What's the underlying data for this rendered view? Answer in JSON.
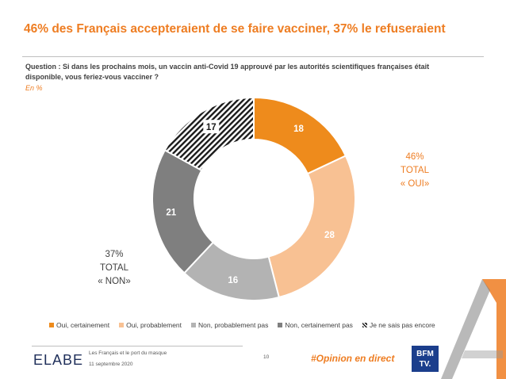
{
  "title": "46% des Français accepteraient de se faire vacciner, 37% le refuseraient",
  "question_line1": "Question : Si dans les prochains mois, un vaccin anti-Covid 19 approuvé par les autorités scientifiques françaises était",
  "question_line2": "disponible, vous feriez-vous vacciner ?",
  "unit": "En  %",
  "total_oui": {
    "pct": "46%",
    "word": "TOTAL",
    "label": "« OUI»"
  },
  "total_non": {
    "pct": "37%",
    "word": "TOTAL",
    "label": "« NON»"
  },
  "chart_data": {
    "type": "pie",
    "style": "donut",
    "categories": [
      "Oui, certainement",
      "Oui, probablement",
      "Non, probablement pas",
      "Non, certainement pas",
      "Je ne sais pas encore"
    ],
    "values": [
      18,
      28,
      16,
      21,
      17
    ],
    "colors": [
      "#ee8b1c",
      "#f8c193",
      "#b3b3b3",
      "#7f7f7f",
      "hatched-black"
    ],
    "legend_position": "bottom"
  },
  "footer": {
    "logo": "ELABE",
    "study": "Les Français et le port du masque",
    "date": "11 septembre 2020",
    "page": "10",
    "hashtag": "#Opinion en direct",
    "partner_logo": "BFM TV."
  }
}
